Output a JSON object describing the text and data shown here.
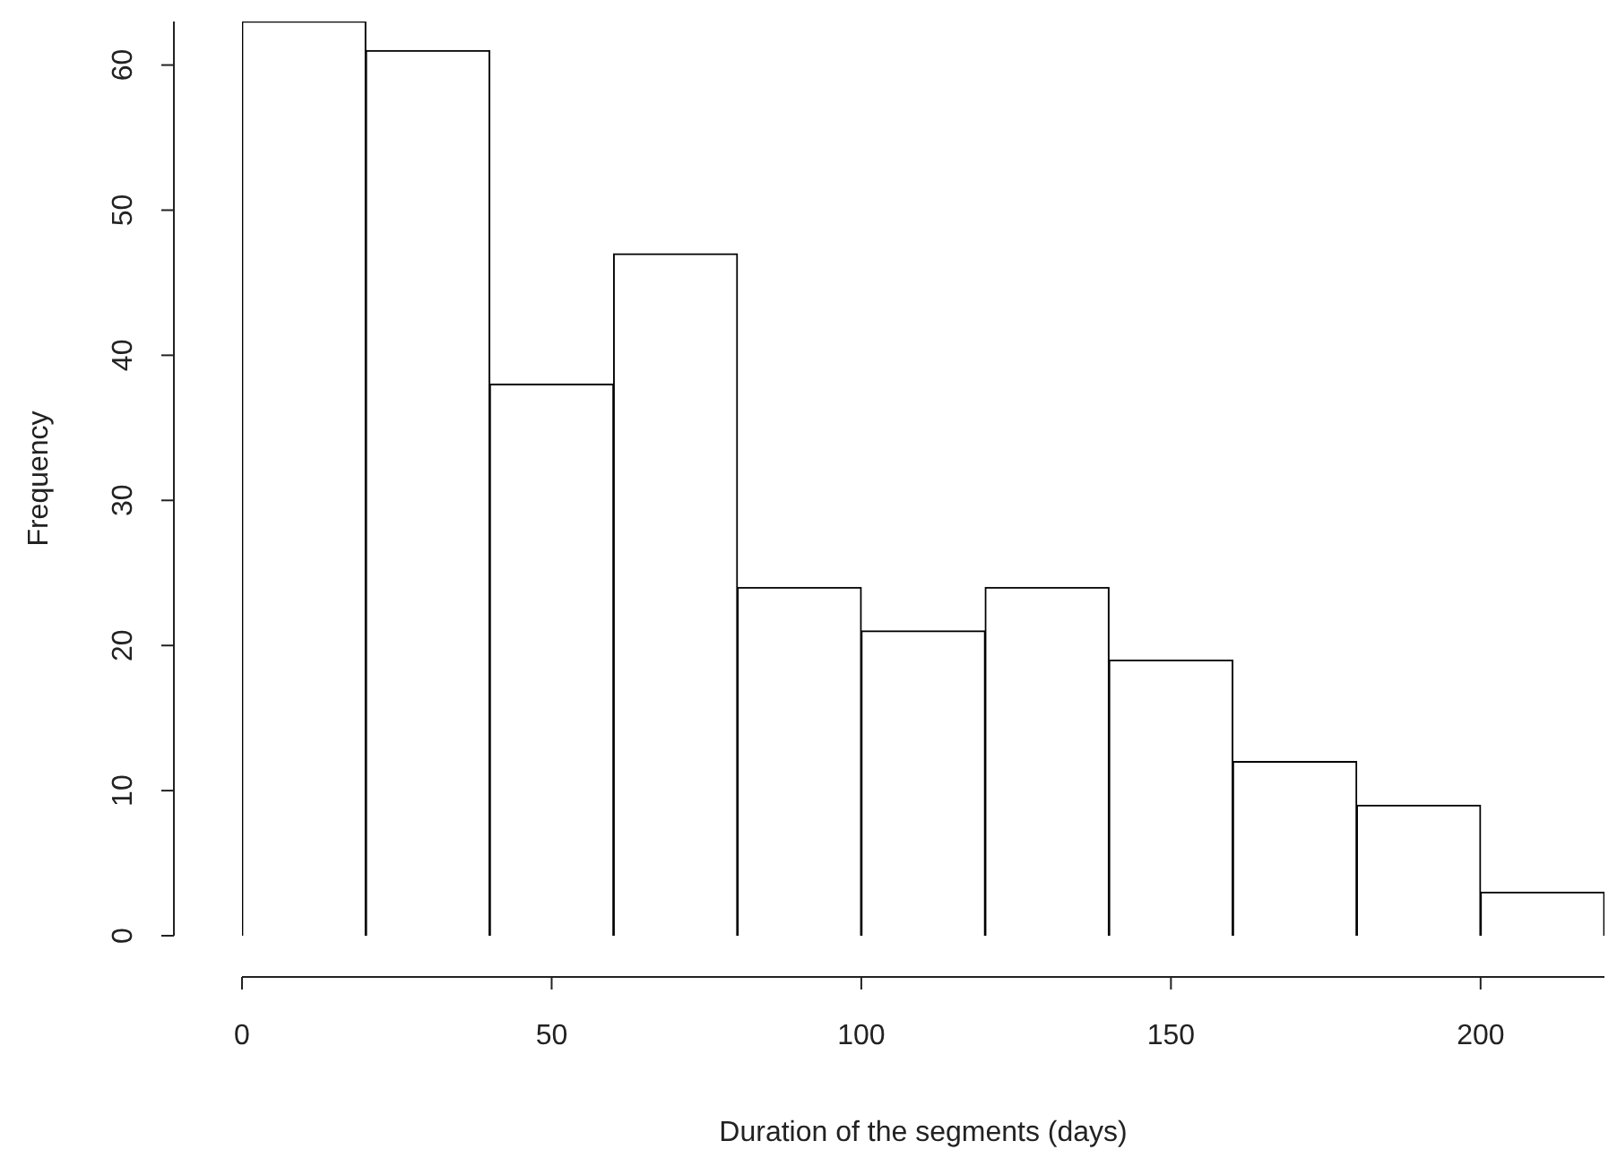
{
  "chart_data": {
    "type": "histogram",
    "xlabel": "Duration of the segments (days)",
    "ylabel": "Frequency",
    "bins": [
      0,
      20,
      40,
      60,
      80,
      100,
      120,
      140,
      160,
      180,
      200,
      220
    ],
    "values": [
      63,
      61,
      38,
      47,
      24,
      21,
      24,
      19,
      12,
      9,
      3
    ],
    "color": "#ffffff",
    "xlim": [
      0,
      220
    ],
    "ylim": [
      0,
      63
    ],
    "xticks": [
      0,
      50,
      100,
      150,
      200
    ],
    "yticks": [
      0,
      10,
      20,
      30,
      40,
      50,
      60
    ]
  }
}
